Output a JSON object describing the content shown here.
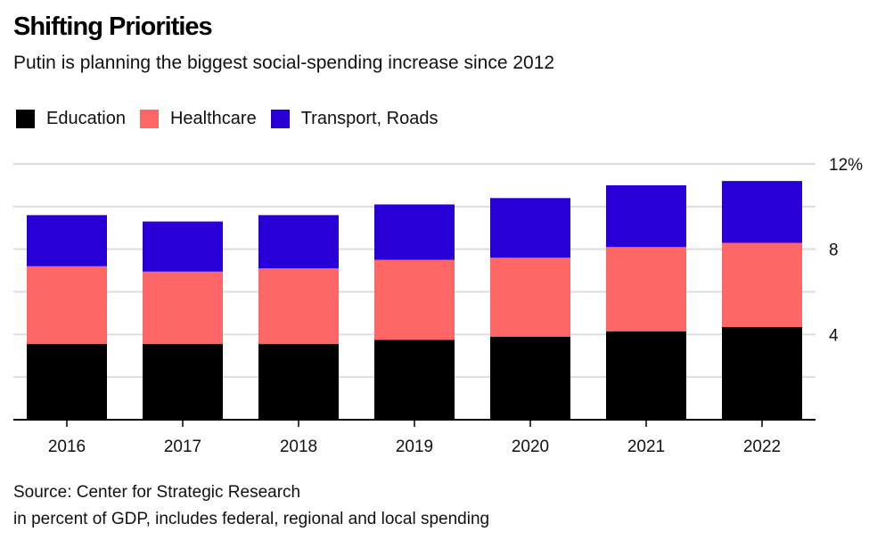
{
  "header": {
    "title": "Shifting Priorities",
    "subtitle": "Putin is planning the biggest social-spending increase since 2012"
  },
  "legend": [
    {
      "label": "Education",
      "color": "#000000"
    },
    {
      "label": "Healthcare",
      "color": "#ff6666"
    },
    {
      "label": "Transport, Roads",
      "color": "#2800d7"
    }
  ],
  "footer": {
    "source": "Source: Center for Strategic Research",
    "note": "in percent of GDP, includes federal, regional and local spending"
  },
  "chart_data": {
    "type": "bar",
    "stacked": true,
    "title": "Shifting Priorities",
    "subtitle": "Putin is planning the biggest social-spending increase since 2012",
    "xlabel": "",
    "ylabel": "",
    "categories": [
      "2016",
      "2017",
      "2018",
      "2019",
      "2020",
      "2021",
      "2022"
    ],
    "series": [
      {
        "name": "Education",
        "color": "#000000",
        "values": [
          3.55,
          3.55,
          3.55,
          3.75,
          3.9,
          4.15,
          4.35
        ]
      },
      {
        "name": "Healthcare",
        "color": "#ff6666",
        "values": [
          3.65,
          3.4,
          3.55,
          3.75,
          3.7,
          3.95,
          3.95
        ]
      },
      {
        "name": "Transport, Roads",
        "color": "#2800d7",
        "values": [
          2.4,
          2.35,
          2.5,
          2.6,
          2.8,
          2.9,
          2.9
        ]
      }
    ],
    "ylim": [
      0,
      12
    ],
    "yticks": [
      0,
      2,
      4,
      6,
      8,
      10,
      12
    ],
    "ytick_labels": {
      "4": "4",
      "8": "8",
      "12": "12%"
    },
    "y_axis_position": "right",
    "grid": true,
    "legend_position": "top-left"
  }
}
